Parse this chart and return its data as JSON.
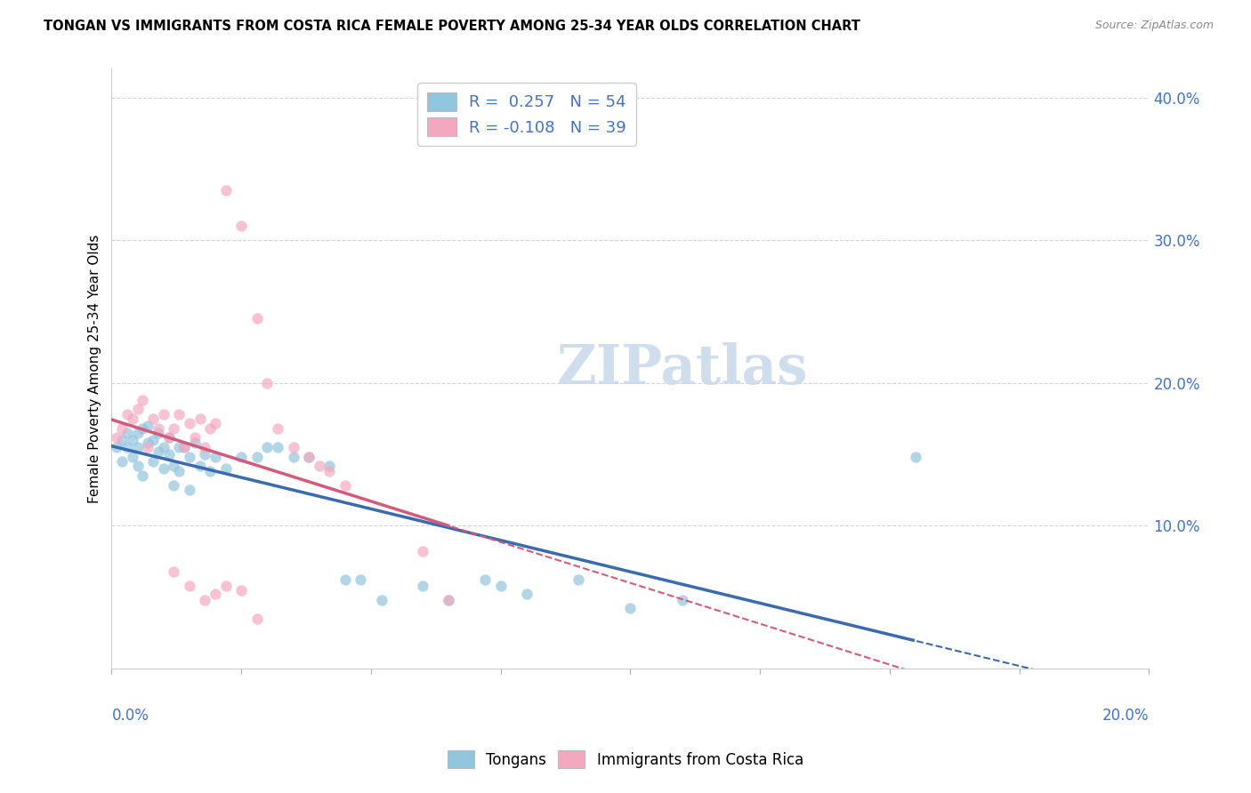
{
  "title": "TONGAN VS IMMIGRANTS FROM COSTA RICA FEMALE POVERTY AMONG 25-34 YEAR OLDS CORRELATION CHART",
  "source": "Source: ZipAtlas.com",
  "ylabel": "Female Poverty Among 25-34 Year Olds",
  "xmin": 0.0,
  "xmax": 0.2,
  "ymin": 0.0,
  "ymax": 0.42,
  "series1_color": "#92C5DE",
  "series2_color": "#F4A8C0",
  "trendline1_color": "#3a6ab0",
  "trendline2_color": "#d45a7a",
  "watermark_color": "#c8d8ea",
  "tongans_x": [
    0.001,
    0.002,
    0.002,
    0.003,
    0.003,
    0.004,
    0.004,
    0.005,
    0.005,
    0.005,
    0.006,
    0.006,
    0.007,
    0.007,
    0.008,
    0.008,
    0.009,
    0.009,
    0.01,
    0.01,
    0.011,
    0.011,
    0.012,
    0.012,
    0.013,
    0.013,
    0.014,
    0.015,
    0.015,
    0.016,
    0.017,
    0.018,
    0.019,
    0.02,
    0.022,
    0.025,
    0.028,
    0.03,
    0.032,
    0.035,
    0.038,
    0.042,
    0.045,
    0.048,
    0.052,
    0.06,
    0.065,
    0.072,
    0.075,
    0.08,
    0.09,
    0.1,
    0.11,
    0.155
  ],
  "tongans_y": [
    0.155,
    0.145,
    0.16,
    0.165,
    0.155,
    0.148,
    0.16,
    0.165,
    0.155,
    0.142,
    0.168,
    0.135,
    0.158,
    0.17,
    0.145,
    0.16,
    0.152,
    0.165,
    0.155,
    0.14,
    0.162,
    0.15,
    0.128,
    0.142,
    0.155,
    0.138,
    0.155,
    0.125,
    0.148,
    0.158,
    0.142,
    0.15,
    0.138,
    0.148,
    0.14,
    0.148,
    0.148,
    0.155,
    0.155,
    0.148,
    0.148,
    0.142,
    0.062,
    0.062,
    0.048,
    0.058,
    0.048,
    0.062,
    0.058,
    0.052,
    0.062,
    0.042,
    0.048,
    0.148
  ],
  "costarica_x": [
    0.001,
    0.002,
    0.003,
    0.004,
    0.005,
    0.006,
    0.007,
    0.008,
    0.009,
    0.01,
    0.011,
    0.012,
    0.013,
    0.014,
    0.015,
    0.016,
    0.017,
    0.018,
    0.019,
    0.02,
    0.022,
    0.025,
    0.028,
    0.03,
    0.032,
    0.035,
    0.038,
    0.04,
    0.042,
    0.045,
    0.012,
    0.015,
    0.018,
    0.02,
    0.022,
    0.025,
    0.028,
    0.06,
    0.065
  ],
  "costarica_y": [
    0.162,
    0.168,
    0.178,
    0.175,
    0.182,
    0.188,
    0.155,
    0.175,
    0.168,
    0.178,
    0.162,
    0.168,
    0.178,
    0.155,
    0.172,
    0.162,
    0.175,
    0.155,
    0.168,
    0.172,
    0.335,
    0.31,
    0.245,
    0.2,
    0.168,
    0.155,
    0.148,
    0.142,
    0.138,
    0.128,
    0.068,
    0.058,
    0.048,
    0.052,
    0.058,
    0.055,
    0.035,
    0.082,
    0.048
  ]
}
